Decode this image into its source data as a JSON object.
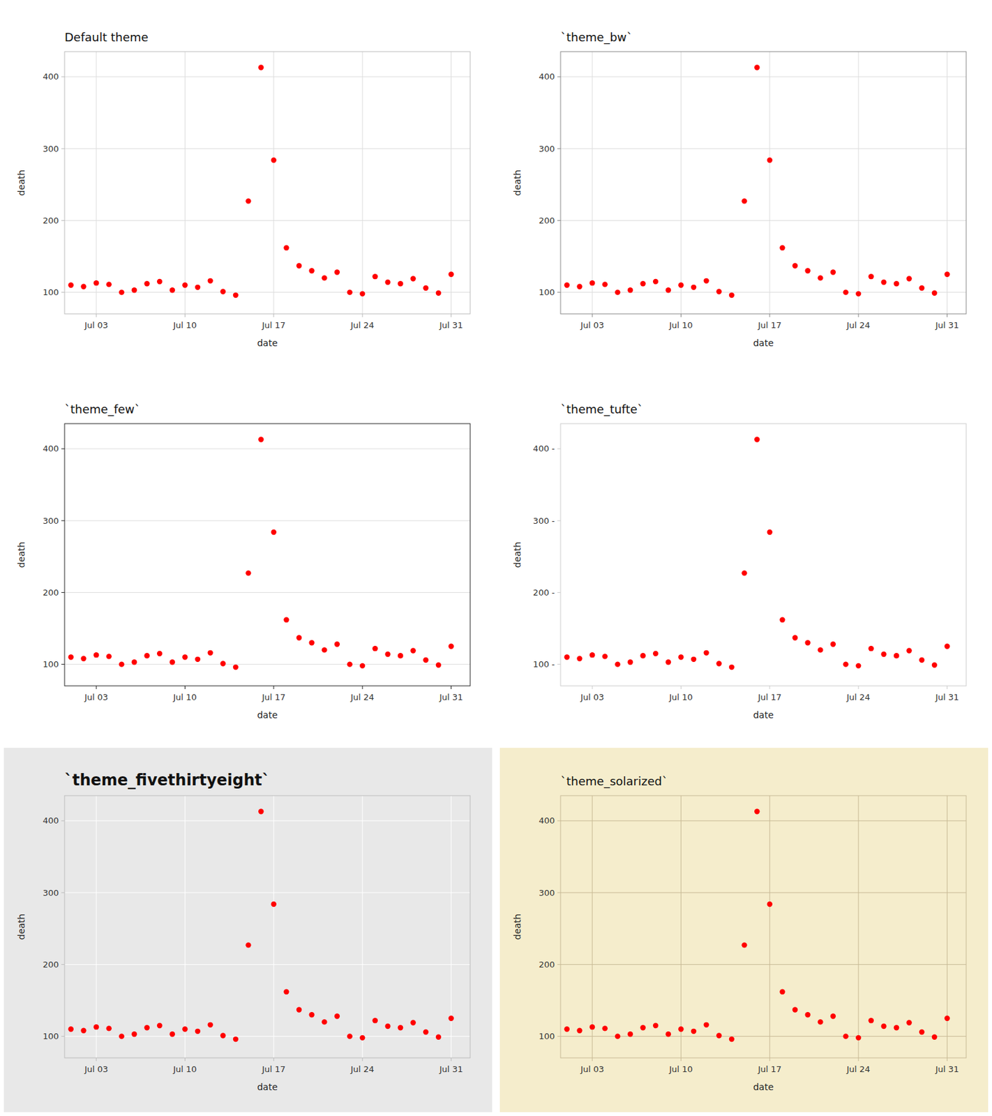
{
  "chart_data": [
    {
      "type": "scatter",
      "title": "Default theme",
      "xlabel": "date",
      "ylabel": "death",
      "x": [
        1,
        2,
        3,
        4,
        5,
        6,
        7,
        8,
        9,
        10,
        11,
        12,
        13,
        14,
        15,
        16,
        17,
        18,
        19,
        20,
        21,
        22,
        23,
        24,
        25,
        26,
        27,
        28,
        29,
        30,
        31
      ],
      "values": [
        110,
        108,
        113,
        111,
        100,
        103,
        112,
        115,
        103,
        110,
        107,
        116,
        101,
        96,
        227,
        413,
        284,
        162,
        137,
        130,
        120,
        128,
        100,
        98,
        122,
        114,
        112,
        119,
        106,
        99,
        125
      ],
      "color": "#FF0000",
      "xlim": [
        0.5,
        32.5
      ],
      "xticks": [
        {
          "value": 3,
          "label": "Jul 03"
        },
        {
          "value": 10,
          "label": "Jul 10"
        },
        {
          "value": 17,
          "label": "Jul 17"
        },
        {
          "value": 24,
          "label": "Jul 24"
        },
        {
          "value": 31,
          "label": "Jul 31"
        }
      ],
      "ylim": [
        70,
        435
      ],
      "yticks": [
        100,
        200,
        300,
        400
      ],
      "grid": true
    },
    {
      "type": "scatter",
      "title": "`theme_bw`",
      "xlabel": "date",
      "ylabel": "death",
      "x": [
        1,
        2,
        3,
        4,
        5,
        6,
        7,
        8,
        9,
        10,
        11,
        12,
        13,
        14,
        15,
        16,
        17,
        18,
        19,
        20,
        21,
        22,
        23,
        24,
        25,
        26,
        27,
        28,
        29,
        30,
        31
      ],
      "values": [
        110,
        108,
        113,
        111,
        100,
        103,
        112,
        115,
        103,
        110,
        107,
        116,
        101,
        96,
        227,
        413,
        284,
        162,
        137,
        130,
        120,
        128,
        100,
        98,
        122,
        114,
        112,
        119,
        106,
        99,
        125
      ],
      "color": "#FF0000",
      "xlim": [
        0.5,
        32.5
      ],
      "xticks": [
        {
          "value": 3,
          "label": "Jul 03"
        },
        {
          "value": 10,
          "label": "Jul 10"
        },
        {
          "value": 17,
          "label": "Jul 17"
        },
        {
          "value": 24,
          "label": "Jul 24"
        },
        {
          "value": 31,
          "label": "Jul 31"
        }
      ],
      "ylim": [
        70,
        435
      ],
      "yticks": [
        100,
        200,
        300,
        400
      ],
      "grid": true
    },
    {
      "type": "scatter",
      "title": "`theme_few`",
      "xlabel": "date",
      "ylabel": "death",
      "x": [
        1,
        2,
        3,
        4,
        5,
        6,
        7,
        8,
        9,
        10,
        11,
        12,
        13,
        14,
        15,
        16,
        17,
        18,
        19,
        20,
        21,
        22,
        23,
        24,
        25,
        26,
        27,
        28,
        29,
        30,
        31
      ],
      "values": [
        110,
        108,
        113,
        111,
        100,
        103,
        112,
        115,
        103,
        110,
        107,
        116,
        101,
        96,
        227,
        413,
        284,
        162,
        137,
        130,
        120,
        128,
        100,
        98,
        122,
        114,
        112,
        119,
        106,
        99,
        125
      ],
      "color": "#FF0000",
      "xlim": [
        0.5,
        32.5
      ],
      "xticks": [
        {
          "value": 3,
          "label": "Jul 03"
        },
        {
          "value": 10,
          "label": "Jul 10"
        },
        {
          "value": 17,
          "label": "Jul 17"
        },
        {
          "value": 24,
          "label": "Jul 24"
        },
        {
          "value": 31,
          "label": "Jul 31"
        }
      ],
      "ylim": [
        70,
        435
      ],
      "yticks": [
        100,
        200,
        300,
        400
      ],
      "grid": "y"
    },
    {
      "type": "scatter",
      "title": "`theme_tufte`",
      "xlabel": "date",
      "ylabel": "death",
      "x": [
        1,
        2,
        3,
        4,
        5,
        6,
        7,
        8,
        9,
        10,
        11,
        12,
        13,
        14,
        15,
        16,
        17,
        18,
        19,
        20,
        21,
        22,
        23,
        24,
        25,
        26,
        27,
        28,
        29,
        30,
        31
      ],
      "values": [
        110,
        108,
        113,
        111,
        100,
        103,
        112,
        115,
        103,
        110,
        107,
        116,
        101,
        96,
        227,
        413,
        284,
        162,
        137,
        130,
        120,
        128,
        100,
        98,
        122,
        114,
        112,
        119,
        106,
        99,
        125
      ],
      "color": "#FF0000",
      "xlim": [
        0.5,
        32.5
      ],
      "xticks": [
        {
          "value": 3,
          "label": "Jul 03"
        },
        {
          "value": 10,
          "label": "Jul 10"
        },
        {
          "value": 17,
          "label": "Jul 17"
        },
        {
          "value": 24,
          "label": "Jul 24"
        },
        {
          "value": 31,
          "label": "Jul 31"
        }
      ],
      "ylim": [
        70,
        435
      ],
      "yticks": [
        {
          "value": 100,
          "label": "100 -"
        },
        {
          "value": 200,
          "label": "200 -"
        },
        {
          "value": 300,
          "label": "300 -"
        },
        {
          "value": 400,
          "label": "400 -"
        }
      ],
      "grid": false
    },
    {
      "type": "scatter",
      "title": "`theme_fivethirtyeight`",
      "xlabel": "date",
      "ylabel": "death",
      "x": [
        1,
        2,
        3,
        4,
        5,
        6,
        7,
        8,
        9,
        10,
        11,
        12,
        13,
        14,
        15,
        16,
        17,
        18,
        19,
        20,
        21,
        22,
        23,
        24,
        25,
        26,
        27,
        28,
        29,
        30,
        31
      ],
      "values": [
        110,
        108,
        113,
        111,
        100,
        103,
        112,
        115,
        103,
        110,
        107,
        116,
        101,
        96,
        227,
        413,
        284,
        162,
        137,
        130,
        120,
        128,
        100,
        98,
        122,
        114,
        112,
        119,
        106,
        99,
        125
      ],
      "color": "#FF0000",
      "xlim": [
        0.5,
        32.5
      ],
      "xticks": [
        {
          "value": 3,
          "label": "Jul 03"
        },
        {
          "value": 10,
          "label": "Jul 10"
        },
        {
          "value": 17,
          "label": "Jul 17"
        },
        {
          "value": 24,
          "label": "Jul 24"
        },
        {
          "value": 31,
          "label": "Jul 31"
        }
      ],
      "ylim": [
        70,
        435
      ],
      "yticks": [
        100,
        200,
        300,
        400
      ],
      "grid": true
    },
    {
      "type": "scatter",
      "title": "`theme_solarized`",
      "xlabel": "date",
      "ylabel": "death",
      "x": [
        1,
        2,
        3,
        4,
        5,
        6,
        7,
        8,
        9,
        10,
        11,
        12,
        13,
        14,
        15,
        16,
        17,
        18,
        19,
        20,
        21,
        22,
        23,
        24,
        25,
        26,
        27,
        28,
        29,
        30,
        31
      ],
      "values": [
        110,
        108,
        113,
        111,
        100,
        103,
        112,
        115,
        103,
        110,
        107,
        116,
        101,
        96,
        227,
        413,
        284,
        162,
        137,
        130,
        120,
        128,
        100,
        98,
        122,
        114,
        112,
        119,
        106,
        99,
        125
      ],
      "color": "#FF0000",
      "xlim": [
        0.5,
        32.5
      ],
      "xticks": [
        {
          "value": 3,
          "label": "Jul 03"
        },
        {
          "value": 10,
          "label": "Jul 10"
        },
        {
          "value": 17,
          "label": "Jul 17"
        },
        {
          "value": 24,
          "label": "Jul 24"
        },
        {
          "value": 31,
          "label": "Jul 31"
        }
      ],
      "ylim": [
        70,
        435
      ],
      "yticks": [
        100,
        200,
        300,
        400
      ],
      "grid": true
    }
  ]
}
